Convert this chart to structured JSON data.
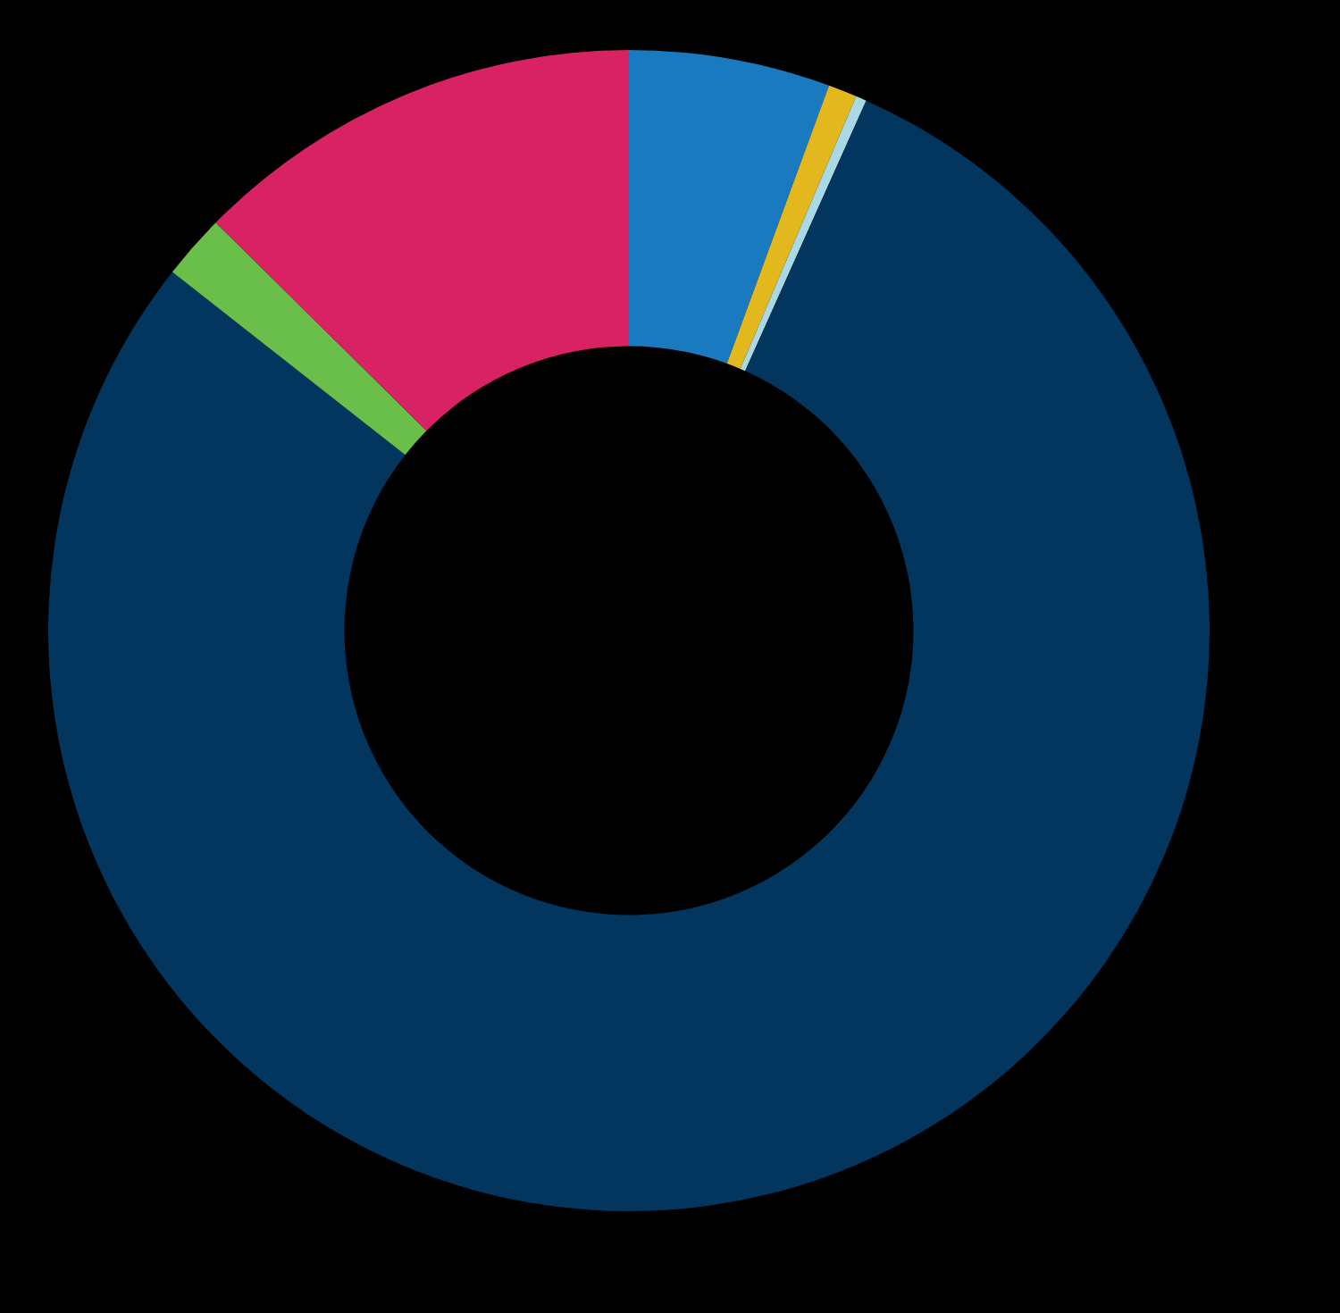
{
  "chart_data": {
    "type": "donut",
    "categories": [
      null,
      null,
      null,
      null,
      null,
      null
    ],
    "values": [
      5.6,
      0.8,
      0.3,
      78.9,
      1.8,
      12.6
    ],
    "colors": [
      "#1a7abf",
      "#e3b81f",
      "#a9d8e6",
      "#02365e",
      "#6abf4b",
      "#d82264"
    ],
    "legend": false
  }
}
